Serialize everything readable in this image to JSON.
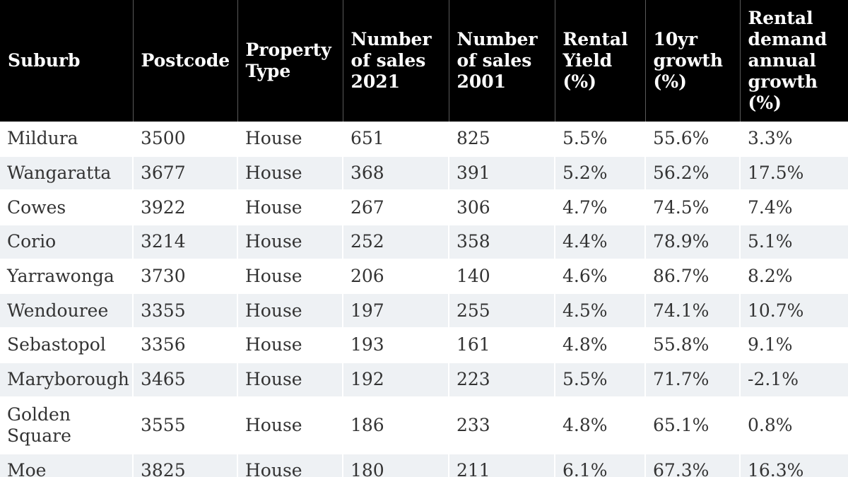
{
  "table": {
    "headers": [
      "Suburb",
      "Postcode",
      "Property Type",
      "Number of sales 2021",
      "Number of sales 2001",
      "Rental Yield (%)",
      "10yr growth (%)",
      "Rental demand annual growth (%)"
    ],
    "rows": [
      [
        "Mildura",
        "3500",
        "House",
        "651",
        "825",
        "5.5%",
        "55.6%",
        "3.3%"
      ],
      [
        "Wangaratta",
        "3677",
        "House",
        "368",
        "391",
        "5.2%",
        "56.2%",
        "17.5%"
      ],
      [
        "Cowes",
        "3922",
        "House",
        "267",
        "306",
        "4.7%",
        "74.5%",
        "7.4%"
      ],
      [
        "Corio",
        "3214",
        "House",
        "252",
        "358",
        "4.4%",
        "78.9%",
        "5.1%"
      ],
      [
        "Yarrawonga",
        "3730",
        "House",
        "206",
        "140",
        "4.6%",
        "86.7%",
        "8.2%"
      ],
      [
        "Wendouree",
        "3355",
        "House",
        "197",
        "255",
        "4.5%",
        "74.1%",
        "10.7%"
      ],
      [
        "Sebastopol",
        "3356",
        "House",
        "193",
        "161",
        "4.8%",
        "55.8%",
        "9.1%"
      ],
      [
        "Maryborough",
        "3465",
        "House",
        "192",
        "223",
        "5.5%",
        "71.7%",
        "-2.1%"
      ],
      [
        "Golden Square",
        "3555",
        "House",
        "186",
        "233",
        "4.8%",
        "65.1%",
        "0.8%"
      ],
      [
        "Moe",
        "3825",
        "House",
        "180",
        "211",
        "6.1%",
        "67.3%",
        "16.3%"
      ]
    ]
  }
}
